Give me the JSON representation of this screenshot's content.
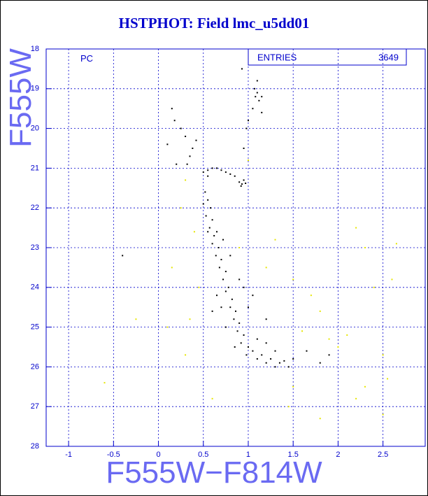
{
  "chart_data": {
    "type": "scatter",
    "title": "HSTPHOT: Field lmc_u5dd01",
    "x_label": "F555W−F814W",
    "y_label": "F555W",
    "annotation": "PC",
    "stats_label": "ENTRIES",
    "stats_value": "3649",
    "xlim": [
      -1.25,
      2.97
    ],
    "ylim": [
      18,
      28
    ],
    "y_inverted": true,
    "xticks": [
      -1,
      -0.5,
      0,
      0.5,
      1,
      1.5,
      2,
      2.5
    ],
    "yticks": [
      18,
      19,
      20,
      21,
      22,
      23,
      24,
      25,
      26,
      27,
      28
    ],
    "grid": true,
    "axis_color": "#0000cc",
    "series": [
      {
        "color": "#000000",
        "x": [
          0.1,
          0.15,
          0.18,
          0.25,
          0.3,
          0.35,
          0.38,
          0.42,
          0.32,
          0.2,
          0.55,
          0.6,
          0.65,
          0.7,
          0.75,
          0.8,
          0.85,
          0.5,
          0.55,
          0.9,
          0.93,
          0.95,
          0.92,
          0.97,
          0.95,
          0.98,
          1.0,
          1.05,
          1.08,
          1.1,
          1.12,
          1.07,
          1.15,
          1.1,
          0.93,
          1.15,
          0.52,
          0.55,
          0.58,
          0.53,
          0.6,
          0.57,
          0.62,
          0.65,
          0.6,
          0.67,
          0.64,
          0.7,
          0.68,
          0.75,
          0.72,
          0.78,
          0.75,
          0.82,
          0.8,
          0.86,
          0.84,
          0.9,
          0.88,
          0.95,
          0.92,
          1.0,
          1.05,
          0.98,
          1.1,
          1.15,
          1.2,
          1.25,
          1.3,
          1.35,
          1.4,
          1.45,
          1.1,
          1.2,
          1.3,
          0.7,
          0.65,
          0.85,
          0.55,
          0.5,
          0.72,
          0.8,
          0.9,
          1.0,
          1.05,
          0.95,
          1.8,
          1.9,
          1.65,
          1.5,
          -0.4,
          1.2,
          0.75,
          0.6
        ],
        "y": [
          20.4,
          19.5,
          19.8,
          20.0,
          20.2,
          20.7,
          20.5,
          20.3,
          20.9,
          20.9,
          21.05,
          21.0,
          21.0,
          21.05,
          21.1,
          21.15,
          21.2,
          21.1,
          21.2,
          21.35,
          21.4,
          21.3,
          21.45,
          21.38,
          20.5,
          20.0,
          19.8,
          19.5,
          19.2,
          19.1,
          19.3,
          19.0,
          19.2,
          18.8,
          18.5,
          19.6,
          21.6,
          21.8,
          22.0,
          22.2,
          22.3,
          22.5,
          22.7,
          22.6,
          22.9,
          23.0,
          23.2,
          23.3,
          23.5,
          23.6,
          23.8,
          24.0,
          24.1,
          24.3,
          24.5,
          24.6,
          24.8,
          24.9,
          25.1,
          25.2,
          25.4,
          25.5,
          25.6,
          25.7,
          25.8,
          25.7,
          25.9,
          25.8,
          26.0,
          25.9,
          25.85,
          26.0,
          25.3,
          25.4,
          25.6,
          24.5,
          24.2,
          25.5,
          22.6,
          21.9,
          22.8,
          23.2,
          23.8,
          24.5,
          24.2,
          24.0,
          25.9,
          25.7,
          25.6,
          25.8,
          23.2,
          24.8,
          25.0,
          24.6
        ]
      },
      {
        "color": "#e6e600",
        "x": [
          0.3,
          0.25,
          0.4,
          0.15,
          0.35,
          0.1,
          -0.25,
          -0.6,
          0.3,
          0.9,
          1.2,
          1.5,
          1.7,
          1.8,
          1.9,
          2.0,
          2.1,
          2.2,
          2.3,
          2.4,
          2.6,
          2.65,
          2.5,
          2.3,
          2.5,
          1.5,
          1.8,
          2.2,
          1.45,
          0.6,
          1.3,
          1.6,
          1.0,
          0.45,
          2.55
        ],
        "y": [
          21.3,
          22.0,
          22.6,
          23.5,
          24.8,
          25.0,
          24.8,
          26.4,
          25.7,
          23.0,
          23.5,
          23.8,
          24.2,
          24.6,
          25.3,
          25.5,
          25.2,
          22.5,
          23.0,
          24.0,
          23.8,
          22.9,
          25.7,
          26.5,
          27.2,
          26.5,
          27.3,
          26.8,
          27.0,
          26.8,
          22.8,
          25.1,
          20.8,
          24.0,
          26.3
        ]
      }
    ]
  }
}
